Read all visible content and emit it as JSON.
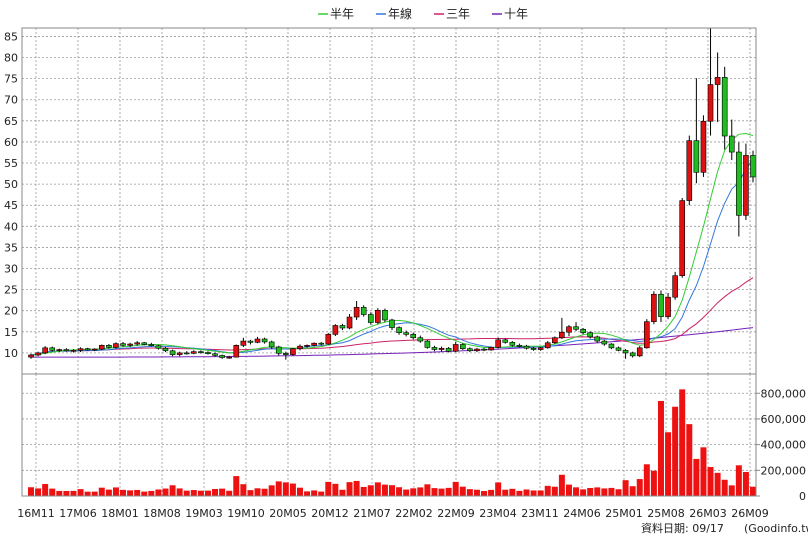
{
  "chart_data": {
    "type": "candlestick",
    "legend": [
      {
        "label": "半年",
        "color": "#33cc33"
      },
      {
        "label": "年線",
        "color": "#3377dd"
      },
      {
        "label": "三年",
        "color": "#cc2266"
      },
      {
        "label": "十年",
        "color": "#7722bb"
      }
    ],
    "price_ylim": [
      5,
      87
    ],
    "price_yticks": [
      "10",
      "15",
      "20",
      "25",
      "30",
      "35",
      "40",
      "45",
      "50",
      "55",
      "60",
      "65",
      "70",
      "75",
      "80",
      "85"
    ],
    "volume_ylim": [
      0,
      950000
    ],
    "volume_yticks": [
      "0",
      "200,000",
      "400,000",
      "600,000",
      "800,000"
    ],
    "xtick_labels": [
      "16M11",
      "17M06",
      "18M01",
      "18M08",
      "19M03",
      "19M10",
      "20M05",
      "20M12",
      "21M07",
      "22M02",
      "22M09",
      "23M04",
      "23M11",
      "24M06",
      "25M01",
      "25M08",
      "26M03",
      "26M09"
    ],
    "footer": "資料日期: 09/17",
    "source": "(Goodinfo.tw)",
    "colors": {
      "up": "#dd1111",
      "down": "#22bb22",
      "volume": "#ee1111",
      "grid": "#999999"
    },
    "ohlc": [
      [
        9.0,
        9.8,
        8.6,
        9.5
      ],
      [
        9.5,
        10.3,
        9.2,
        10.0
      ],
      [
        10.0,
        11.6,
        9.7,
        11.2
      ],
      [
        11.2,
        11.5,
        10.3,
        10.6
      ],
      [
        10.6,
        11.0,
        10.2,
        10.8
      ],
      [
        10.8,
        11.1,
        10.3,
        10.5
      ],
      [
        10.5,
        10.9,
        10.1,
        10.6
      ],
      [
        10.6,
        11.3,
        10.2,
        11.0
      ],
      [
        11.0,
        11.2,
        10.5,
        10.7
      ],
      [
        10.7,
        11.1,
        10.4,
        10.9
      ],
      [
        10.9,
        12.0,
        10.6,
        11.8
      ],
      [
        11.8,
        12.1,
        11.0,
        11.3
      ],
      [
        11.3,
        12.5,
        11.0,
        12.2
      ],
      [
        12.2,
        12.6,
        11.5,
        11.8
      ],
      [
        11.8,
        12.4,
        11.4,
        12.1
      ],
      [
        12.1,
        12.8,
        11.7,
        12.4
      ],
      [
        12.4,
        12.6,
        11.8,
        12.0
      ],
      [
        12.0,
        12.4,
        11.5,
        11.7
      ],
      [
        11.7,
        11.9,
        10.8,
        11.1
      ],
      [
        11.1,
        11.4,
        10.2,
        10.5
      ],
      [
        10.5,
        10.8,
        9.2,
        9.6
      ],
      [
        9.6,
        10.3,
        9.2,
        10.0
      ],
      [
        10.0,
        10.4,
        9.6,
        9.9
      ],
      [
        9.9,
        10.6,
        9.7,
        10.3
      ],
      [
        10.3,
        10.6,
        9.8,
        10.1
      ],
      [
        10.1,
        10.4,
        9.6,
        9.8
      ],
      [
        9.8,
        10.1,
        9.1,
        9.4
      ],
      [
        9.4,
        9.6,
        8.6,
        8.9
      ],
      [
        8.9,
        9.3,
        8.6,
        9.0
      ],
      [
        9.0,
        12.0,
        8.9,
        11.8
      ],
      [
        11.8,
        13.6,
        11.4,
        12.8
      ],
      [
        12.8,
        13.1,
        12.0,
        12.5
      ],
      [
        12.5,
        13.8,
        12.3,
        13.3
      ],
      [
        13.3,
        13.6,
        12.2,
        12.6
      ],
      [
        12.6,
        12.9,
        11.0,
        11.4
      ],
      [
        11.4,
        11.7,
        9.4,
        9.9
      ],
      [
        9.9,
        10.3,
        8.4,
        9.6
      ],
      [
        9.6,
        11.2,
        9.3,
        11.0
      ],
      [
        11.0,
        12.0,
        10.6,
        11.6
      ],
      [
        11.6,
        12.0,
        11.2,
        11.8
      ],
      [
        11.8,
        12.5,
        11.5,
        12.3
      ],
      [
        12.3,
        12.6,
        11.8,
        12.1
      ],
      [
        12.1,
        14.7,
        11.9,
        14.4
      ],
      [
        14.4,
        16.8,
        14.0,
        16.5
      ],
      [
        16.5,
        16.9,
        15.4,
        15.9
      ],
      [
        15.9,
        19.2,
        15.6,
        18.5
      ],
      [
        18.5,
        22.3,
        17.8,
        20.8
      ],
      [
        20.8,
        21.3,
        18.6,
        19.1
      ],
      [
        19.1,
        19.6,
        16.7,
        17.2
      ],
      [
        17.2,
        20.6,
        16.8,
        20.1
      ],
      [
        20.1,
        20.5,
        17.3,
        17.8
      ],
      [
        17.8,
        18.1,
        15.4,
        16.0
      ],
      [
        16.0,
        16.3,
        14.3,
        14.8
      ],
      [
        14.8,
        15.3,
        13.9,
        14.4
      ],
      [
        14.4,
        14.8,
        13.2,
        13.6
      ],
      [
        13.6,
        14.1,
        12.4,
        12.8
      ],
      [
        12.8,
        13.1,
        11.0,
        11.3
      ],
      [
        11.3,
        11.7,
        10.4,
        10.8
      ],
      [
        10.8,
        11.5,
        10.3,
        11.1
      ],
      [
        11.1,
        11.4,
        10.1,
        10.4
      ],
      [
        10.4,
        12.6,
        10.2,
        12.0
      ],
      [
        12.0,
        12.3,
        10.7,
        11.0
      ],
      [
        11.0,
        11.3,
        10.2,
        10.5
      ],
      [
        10.5,
        11.2,
        10.2,
        10.9
      ],
      [
        10.9,
        11.2,
        10.4,
        10.7
      ],
      [
        10.7,
        11.5,
        10.5,
        11.3
      ],
      [
        11.3,
        13.6,
        11.1,
        13.1
      ],
      [
        13.1,
        13.4,
        12.2,
        12.5
      ],
      [
        12.5,
        12.8,
        11.5,
        11.8
      ],
      [
        11.8,
        12.2,
        11.3,
        11.6
      ],
      [
        11.6,
        11.9,
        10.8,
        11.1
      ],
      [
        11.1,
        11.4,
        10.5,
        10.8
      ],
      [
        10.8,
        11.4,
        10.5,
        11.2
      ],
      [
        11.2,
        12.8,
        11.0,
        12.4
      ],
      [
        12.4,
        13.9,
        12.1,
        13.6
      ],
      [
        13.6,
        18.3,
        13.3,
        14.9
      ],
      [
        14.9,
        16.6,
        14.0,
        16.2
      ],
      [
        16.2,
        17.3,
        15.2,
        15.6
      ],
      [
        15.6,
        15.9,
        14.4,
        14.8
      ],
      [
        14.8,
        15.1,
        13.4,
        13.8
      ],
      [
        13.8,
        14.1,
        12.4,
        12.8
      ],
      [
        12.8,
        13.1,
        11.7,
        12.1
      ],
      [
        12.1,
        12.3,
        10.9,
        11.2
      ],
      [
        11.2,
        11.5,
        10.4,
        10.6
      ],
      [
        10.6,
        10.9,
        8.6,
        10.0
      ],
      [
        10.0,
        10.3,
        8.9,
        9.3
      ],
      [
        9.3,
        11.6,
        9.0,
        11.2
      ],
      [
        11.2,
        18.0,
        11.0,
        17.4
      ],
      [
        17.4,
        24.6,
        16.8,
        23.9
      ],
      [
        23.9,
        24.8,
        17.3,
        18.6
      ],
      [
        18.6,
        24.2,
        18.0,
        23.2
      ],
      [
        23.2,
        29.2,
        22.6,
        28.3
      ],
      [
        28.3,
        46.7,
        27.8,
        46.1
      ],
      [
        46.1,
        61.5,
        45.0,
        60.3
      ],
      [
        60.3,
        75.1,
        50.2,
        52.8
      ],
      [
        52.8,
        66.3,
        51.7,
        64.9
      ],
      [
        64.9,
        86.9,
        61.5,
        73.6
      ],
      [
        73.6,
        81.2,
        64.7,
        75.3
      ],
      [
        75.3,
        77.8,
        58.2,
        61.4
      ],
      [
        61.4,
        65.3,
        55.7,
        57.6
      ],
      [
        57.6,
        59.9,
        37.6,
        42.6
      ],
      [
        42.6,
        59.6,
        41.5,
        56.8
      ],
      [
        56.8,
        57.9,
        50.4,
        51.7
      ]
    ],
    "ma_half": [
      9.4,
      9.6,
      9.9,
      10.2,
      10.4,
      10.6,
      10.7,
      10.8,
      10.8,
      10.9,
      11.0,
      11.1,
      11.3,
      11.5,
      11.6,
      11.8,
      11.9,
      12.0,
      12.0,
      11.9,
      11.7,
      11.5,
      11.2,
      11.0,
      10.8,
      10.6,
      10.4,
      10.2,
      10.0,
      10.1,
      10.4,
      10.7,
      11.0,
      11.3,
      11.4,
      11.3,
      11.2,
      11.1,
      11.1,
      11.1,
      11.3,
      11.5,
      11.9,
      12.4,
      13.0,
      13.8,
      14.8,
      15.6,
      16.2,
      16.8,
      17.3,
      17.6,
      17.7,
      17.5,
      17.1,
      16.5,
      15.8,
      15.0,
      14.2,
      13.5,
      12.9,
      12.3,
      11.9,
      11.6,
      11.3,
      11.2,
      11.3,
      11.4,
      11.5,
      11.6,
      11.6,
      11.6,
      11.6,
      11.8,
      12.1,
      12.6,
      13.2,
      13.8,
      14.3,
      14.6,
      14.7,
      14.6,
      14.2,
      13.7,
      13.0,
      12.3,
      11.8,
      12.0,
      13.2,
      14.6,
      16.3,
      18.6,
      22.5,
      28.0,
      34.0,
      40.0,
      46.5,
      53.0,
      58.0,
      60.5,
      61.8,
      62.0,
      61.5
    ]
  }
}
